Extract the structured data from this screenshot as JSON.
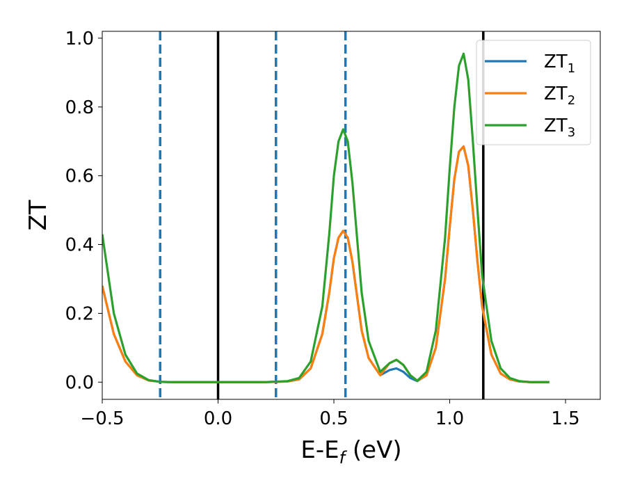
{
  "chart_data": {
    "type": "line",
    "xlabel": "E-E_f (eV)",
    "ylabel": "ZT",
    "xlim": [
      -0.5,
      1.65
    ],
    "ylim": [
      -0.05,
      1.02
    ],
    "xticks": [
      -0.5,
      0.0,
      0.5,
      1.0,
      1.5
    ],
    "xtick_labels": [
      "−0.5",
      "0.0",
      "0.5",
      "1.0",
      "1.5"
    ],
    "yticks": [
      0.0,
      0.2,
      0.4,
      0.6,
      0.8,
      1.0
    ],
    "ytick_labels": [
      "0.0",
      "0.2",
      "0.4",
      "0.6",
      "0.8",
      "1.0"
    ],
    "grid": false,
    "legend_position": "top-right",
    "series": [
      {
        "name": "ZT1",
        "label_main": "ZT",
        "label_sub": "1",
        "color": "#1f77b4",
        "x": [
          -0.5,
          -0.45,
          -0.4,
          -0.35,
          -0.3,
          -0.25,
          -0.2,
          -0.1,
          0.0,
          0.1,
          0.2,
          0.3,
          0.35,
          0.4,
          0.45,
          0.48,
          0.5,
          0.52,
          0.54,
          0.56,
          0.58,
          0.6,
          0.62,
          0.65,
          0.7,
          0.74,
          0.77,
          0.8,
          0.83,
          0.86,
          0.9,
          0.94,
          0.98,
          1.0,
          1.02,
          1.04,
          1.06,
          1.08,
          1.1,
          1.12,
          1.14,
          1.18,
          1.22,
          1.26,
          1.3,
          1.35,
          1.43
        ],
        "y": [
          0.28,
          0.14,
          0.06,
          0.02,
          0.005,
          0.001,
          0.0,
          0.0,
          0.0,
          0.0,
          0.0,
          0.002,
          0.008,
          0.04,
          0.14,
          0.26,
          0.36,
          0.42,
          0.44,
          0.42,
          0.35,
          0.25,
          0.15,
          0.07,
          0.02,
          0.035,
          0.04,
          0.03,
          0.012,
          0.003,
          0.02,
          0.1,
          0.3,
          0.45,
          0.59,
          0.67,
          0.685,
          0.63,
          0.5,
          0.35,
          0.22,
          0.08,
          0.025,
          0.008,
          0.002,
          0.0,
          0.0
        ]
      },
      {
        "name": "ZT2",
        "label_main": "ZT",
        "label_sub": "2",
        "color": "#ff7f0e",
        "x": [
          -0.5,
          -0.45,
          -0.4,
          -0.35,
          -0.3,
          -0.25,
          -0.2,
          -0.1,
          0.0,
          0.1,
          0.2,
          0.3,
          0.35,
          0.4,
          0.45,
          0.48,
          0.5,
          0.52,
          0.54,
          0.56,
          0.58,
          0.6,
          0.62,
          0.65,
          0.7,
          0.74,
          0.77,
          0.8,
          0.83,
          0.86,
          0.9,
          0.94,
          0.98,
          1.0,
          1.02,
          1.04,
          1.06,
          1.08,
          1.1,
          1.12,
          1.14,
          1.18,
          1.22,
          1.26,
          1.3,
          1.35,
          1.43
        ],
        "y": [
          0.28,
          0.14,
          0.06,
          0.02,
          0.005,
          0.001,
          0.0,
          0.0,
          0.0,
          0.0,
          0.0,
          0.002,
          0.008,
          0.04,
          0.14,
          0.26,
          0.36,
          0.42,
          0.44,
          0.42,
          0.35,
          0.25,
          0.15,
          0.07,
          0.02,
          0.055,
          0.065,
          0.05,
          0.02,
          0.004,
          0.02,
          0.1,
          0.3,
          0.45,
          0.59,
          0.67,
          0.685,
          0.63,
          0.5,
          0.35,
          0.22,
          0.08,
          0.025,
          0.008,
          0.002,
          0.0,
          0.0
        ]
      },
      {
        "name": "ZT3",
        "label_main": "ZT",
        "label_sub": "3",
        "color": "#2ca02c",
        "x": [
          -0.5,
          -0.45,
          -0.4,
          -0.35,
          -0.3,
          -0.25,
          -0.2,
          -0.1,
          0.0,
          0.1,
          0.2,
          0.3,
          0.35,
          0.4,
          0.45,
          0.48,
          0.5,
          0.52,
          0.54,
          0.56,
          0.58,
          0.6,
          0.62,
          0.65,
          0.7,
          0.74,
          0.77,
          0.8,
          0.83,
          0.86,
          0.9,
          0.94,
          0.98,
          1.0,
          1.02,
          1.04,
          1.06,
          1.08,
          1.1,
          1.12,
          1.14,
          1.18,
          1.22,
          1.26,
          1.3,
          1.35,
          1.43
        ],
        "y": [
          0.43,
          0.2,
          0.08,
          0.025,
          0.006,
          0.001,
          0.0,
          0.0,
          0.0,
          0.0,
          0.0,
          0.003,
          0.012,
          0.06,
          0.22,
          0.43,
          0.6,
          0.7,
          0.735,
          0.7,
          0.58,
          0.42,
          0.26,
          0.12,
          0.03,
          0.055,
          0.065,
          0.05,
          0.02,
          0.004,
          0.03,
          0.15,
          0.42,
          0.62,
          0.8,
          0.92,
          0.955,
          0.88,
          0.7,
          0.5,
          0.31,
          0.12,
          0.04,
          0.012,
          0.003,
          0.0,
          0.0
        ]
      }
    ],
    "vertical_lines": [
      {
        "x": -0.25,
        "style": "dashed",
        "color": "#1f77b4"
      },
      {
        "x": 0.0,
        "style": "solid",
        "color": "#000000"
      },
      {
        "x": 0.25,
        "style": "dashed",
        "color": "#1f77b4"
      },
      {
        "x": 0.55,
        "style": "dashed",
        "color": "#1f77b4"
      },
      {
        "x": 1.145,
        "style": "solid",
        "color": "#000000"
      }
    ]
  }
}
